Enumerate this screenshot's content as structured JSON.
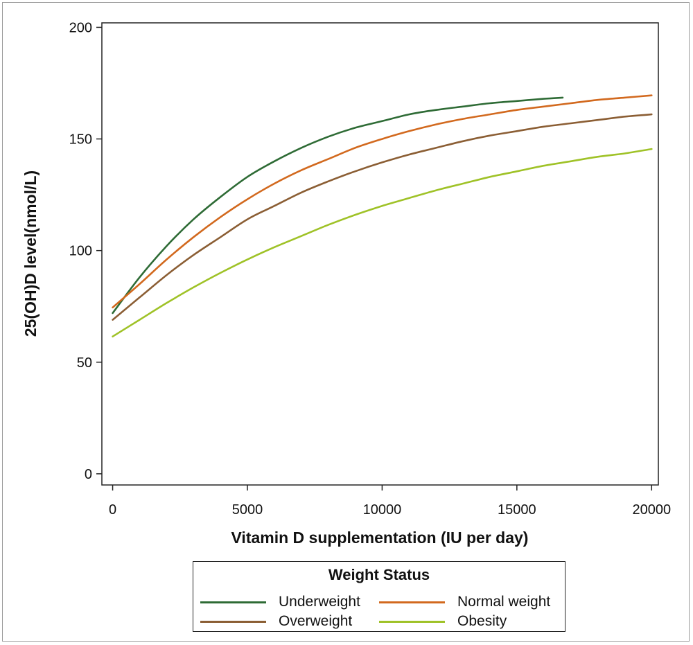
{
  "chart_data": {
    "type": "line",
    "title": "",
    "xlabel": "Vitamin D supplementation (IU per day)",
    "ylabel": "25(OH)D level(nmol/L)",
    "xlim": [
      -400,
      20250
    ],
    "ylim": [
      -5,
      202
    ],
    "xticks": [
      0,
      5000,
      10000,
      15000,
      20000
    ],
    "xtick_labels": [
      "0",
      "5000",
      "10000",
      "15000",
      "20000"
    ],
    "yticks": [
      0,
      50,
      100,
      150,
      200
    ],
    "ytick_labels": [
      "0",
      "50",
      "100",
      "150",
      "200"
    ],
    "grid": false,
    "legend": {
      "title": "Weight Status",
      "placement": "bottom"
    },
    "series": [
      {
        "name": "Underweight",
        "color": "#2e6b35",
        "x": [
          0,
          1000,
          2000,
          3000,
          4000,
          5000,
          6000,
          7000,
          8000,
          9000,
          10000,
          11000,
          12000,
          13000,
          14000,
          15000,
          16000,
          16700
        ],
        "y": [
          72,
          88,
          102,
          114,
          124,
          133,
          140,
          146,
          151,
          155,
          158,
          161,
          163,
          164.5,
          166,
          167,
          168,
          168.5
        ]
      },
      {
        "name": "Normal weight",
        "color": "#d2691e",
        "x": [
          0,
          1000,
          2000,
          3000,
          4000,
          5000,
          6000,
          7000,
          8000,
          9000,
          10000,
          11000,
          12000,
          13000,
          14000,
          15000,
          16000,
          17000,
          18000,
          19000,
          20000
        ],
        "y": [
          74.5,
          85,
          96,
          106,
          115,
          123,
          130,
          136,
          141,
          146,
          150,
          153.5,
          156.5,
          159,
          161,
          163,
          164.5,
          166,
          167.5,
          168.5,
          169.5
        ]
      },
      {
        "name": "Overweight",
        "color": "#8b5e34",
        "x": [
          0,
          1000,
          2000,
          3000,
          4000,
          5000,
          6000,
          7000,
          8000,
          9000,
          10000,
          11000,
          12000,
          13000,
          14000,
          15000,
          16000,
          17000,
          18000,
          19000,
          20000
        ],
        "y": [
          69,
          79,
          89,
          98,
          106,
          114,
          120,
          126,
          131,
          135.5,
          139.5,
          143,
          146,
          149,
          151.5,
          153.5,
          155.5,
          157,
          158.5,
          160,
          161
        ]
      },
      {
        "name": "Obesity",
        "color": "#9fc227",
        "x": [
          0,
          1000,
          2000,
          3000,
          4000,
          5000,
          6000,
          7000,
          8000,
          9000,
          10000,
          11000,
          12000,
          13000,
          14000,
          15000,
          16000,
          17000,
          18000,
          19000,
          20000
        ],
        "y": [
          61.5,
          69,
          76.5,
          83.5,
          90,
          96,
          101.5,
          106.5,
          111.5,
          116,
          120,
          123.5,
          127,
          130,
          133,
          135.5,
          138,
          140,
          142,
          143.5,
          145.5
        ]
      }
    ]
  }
}
